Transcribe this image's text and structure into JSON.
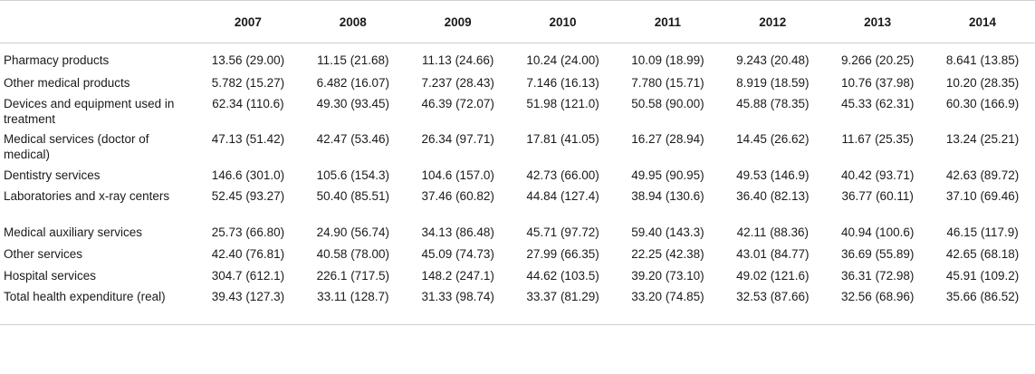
{
  "table": {
    "corner": "",
    "years": [
      "2007",
      "2008",
      "2009",
      "2010",
      "2011",
      "2012",
      "2013",
      "2014"
    ],
    "rows": [
      {
        "label": "Pharmacy products",
        "values": [
          "13.56 (29.00)",
          "11.15 (21.68)",
          "11.13 (24.66)",
          "10.24 (24.00)",
          "10.09 (18.99)",
          "9.243 (20.48)",
          "9.266 (20.25)",
          "8.641 (13.85)"
        ]
      },
      {
        "label": "Other medical products",
        "values": [
          "5.782 (15.27)",
          "6.482 (16.07)",
          "7.237 (28.43)",
          "7.146 (16.13)",
          "7.780 (15.71)",
          "8.919 (18.59)",
          "10.76 (37.98)",
          "10.20 (28.35)"
        ]
      },
      {
        "label": "Devices and equipment used in treatment",
        "values": [
          "62.34 (110.6)",
          "49.30 (93.45)",
          "46.39 (72.07)",
          "51.98 (121.0)",
          "50.58 (90.00)",
          "45.88 (78.35)",
          "45.33 (62.31)",
          "60.30 (166.9)"
        ]
      },
      {
        "label": "Medical services (doctor of medical)",
        "values": [
          "47.13 (51.42)",
          "42.47 (53.46)",
          "26.34 (97.71)",
          "17.81 (41.05)",
          "16.27 (28.94)",
          "14.45 (26.62)",
          "11.67 (25.35)",
          "13.24 (25.21)"
        ]
      },
      {
        "label": "Dentistry services",
        "values": [
          "146.6 (301.0)",
          "105.6 (154.3)",
          "104.6 (157.0)",
          "42.73 (66.00)",
          "49.95 (90.95)",
          "49.53 (146.9)",
          "40.42 (93.71)",
          "42.63 (89.72)"
        ]
      },
      {
        "label": "Laboratories and x-ray centers",
        "values": [
          "52.45 (93.27)",
          "50.40 (85.51)",
          "37.46 (60.82)",
          "44.84 (127.4)",
          "38.94 (130.6)",
          "36.40 (82.13)",
          "36.77 (60.11)",
          "37.10 (69.46)"
        ]
      },
      {
        "label": "Medical auxiliary services",
        "values": [
          "25.73 (66.80)",
          "24.90 (56.74)",
          "34.13 (86.48)",
          "45.71 (97.72)",
          "59.40 (143.3)",
          "42.11 (88.36)",
          "40.94 (100.6)",
          "46.15 (117.9)"
        ]
      },
      {
        "label": "Other services",
        "values": [
          "42.40 (76.81)",
          "40.58 (78.00)",
          "45.09 (74.73)",
          "27.99 (66.35)",
          "22.25 (42.38)",
          "43.01 (84.77)",
          "36.69 (55.89)",
          "42.65 (68.18)"
        ]
      },
      {
        "label": "Hospital services",
        "values": [
          "304.7 (612.1)",
          "226.1 (717.5)",
          "148.2 (247.1)",
          "44.62 (103.5)",
          "39.20 (73.10)",
          "49.02 (121.6)",
          "36.31 (72.98)",
          "45.91 (109.2)"
        ]
      },
      {
        "label": "Total health expenditure (real)",
        "values": [
          "39.43 (127.3)",
          "33.11 (128.7)",
          "31.33 (98.74)",
          "33.37 (81.29)",
          "33.20 (74.85)",
          "32.53 (87.66)",
          "32.56 (68.96)",
          "35.66 (86.52)"
        ]
      }
    ]
  }
}
